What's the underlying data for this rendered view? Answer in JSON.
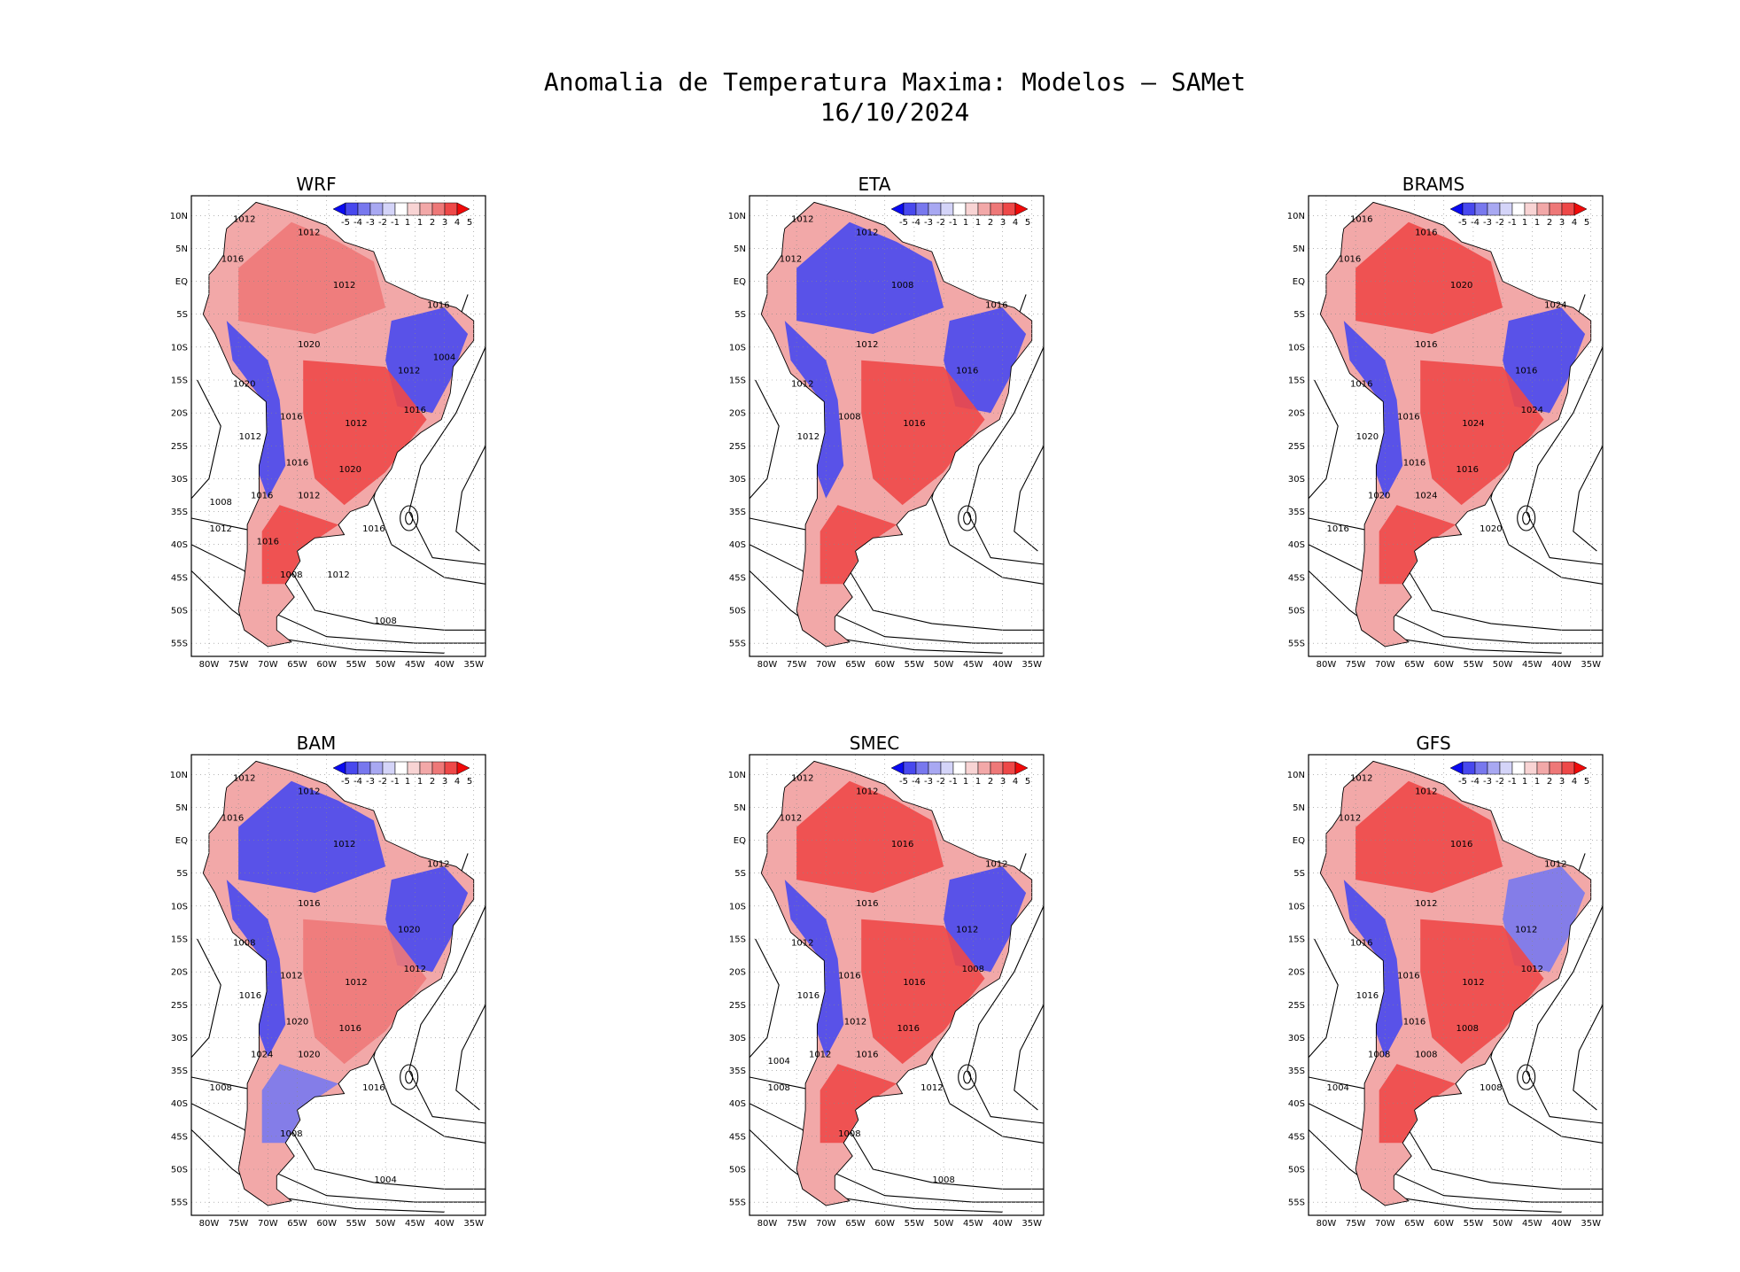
{
  "title": {
    "line1": "Anomalia de Temperatura Maxima: Modelos — SAMet",
    "line2": "16/10/2024"
  },
  "colorbar": {
    "labels": [
      "-5",
      "-4",
      "-3",
      "-2",
      "-1",
      "1",
      "1",
      "2",
      "3",
      "4",
      "5"
    ],
    "colors": [
      "#0a0af0",
      "#4848ee",
      "#7878ee",
      "#a8a8f2",
      "#d4d4f8",
      "#ffffff",
      "#f8d4d4",
      "#f2a8a8",
      "#ee7878",
      "#ee4848",
      "#f00a0a"
    ]
  },
  "axes": {
    "lat_labels": [
      "10N",
      "5N",
      "EQ",
      "5S",
      "10S",
      "15S",
      "20S",
      "25S",
      "30S",
      "35S",
      "40S",
      "45S",
      "50S",
      "55S"
    ],
    "lon_labels": [
      "80W",
      "75W",
      "70W",
      "65W",
      "60W",
      "55W",
      "50W",
      "45W",
      "40W",
      "35W"
    ]
  },
  "panels": [
    {
      "name": "WRF",
      "anomaly": {
        "north": "mixed-warm",
        "northeast": "cold",
        "center": "warm",
        "andes": "cold",
        "south": "warm"
      },
      "isobars": [
        "1012",
        "1012",
        "1016",
        "1012",
        "1016",
        "1020",
        "1012",
        "1020",
        "1016",
        "1012",
        "1012",
        "1016",
        "1016",
        "1020",
        "1016",
        "1012",
        "1016",
        "1012",
        "1008",
        "1008",
        "1008",
        "1004",
        "1016",
        "1012"
      ]
    },
    {
      "name": "ETA",
      "anomaly": {
        "north": "cold",
        "northeast": "cold",
        "center": "warm",
        "andes": "cold",
        "south": "warm"
      },
      "isobars": [
        "1012",
        "1012",
        "1012",
        "1008",
        "1016",
        "1012",
        "1016",
        "1012",
        "1008",
        "1016",
        "1012"
      ]
    },
    {
      "name": "BRAMS",
      "anomaly": {
        "north": "warm",
        "northeast": "cold",
        "center": "warm",
        "andes": "cold",
        "south": "warm"
      },
      "isobars": [
        "1016",
        "1016",
        "1016",
        "1020",
        "1024",
        "1016",
        "1016",
        "1016",
        "1016",
        "1024",
        "1020",
        "1016",
        "1024",
        "1016",
        "1020",
        "1024",
        "1020",
        "1016"
      ]
    },
    {
      "name": "BAM",
      "anomaly": {
        "north": "cold",
        "northeast": "cold",
        "center": "mixed-warm",
        "andes": "cold",
        "south": "mixed-cold"
      },
      "isobars": [
        "1012",
        "1012",
        "1016",
        "1012",
        "1012",
        "1016",
        "1020",
        "1008",
        "1012",
        "1012",
        "1016",
        "1020",
        "1012",
        "1016",
        "1024",
        "1020",
        "1016",
        "1008",
        "1008",
        "1004"
      ]
    },
    {
      "name": "SMEC",
      "anomaly": {
        "north": "warm",
        "northeast": "cold",
        "center": "warm",
        "andes": "cold",
        "south": "warm"
      },
      "isobars": [
        "1012",
        "1012",
        "1012",
        "1016",
        "1012",
        "1016",
        "1012",
        "1012",
        "1016",
        "1016",
        "1016",
        "1012",
        "1008",
        "1016",
        "1012",
        "1016",
        "1012",
        "1008",
        "1008",
        "1008",
        "1004"
      ]
    },
    {
      "name": "GFS",
      "anomaly": {
        "north": "warm",
        "northeast": "mixed-cold",
        "center": "warm",
        "andes": "cold",
        "south": "warm"
      },
      "isobars": [
        "1012",
        "1012",
        "1012",
        "1016",
        "1012",
        "1012",
        "1012",
        "1016",
        "1016",
        "1012",
        "1016",
        "1016",
        "1012",
        "1008",
        "1008",
        "1008",
        "1008",
        "1004"
      ]
    }
  ]
}
